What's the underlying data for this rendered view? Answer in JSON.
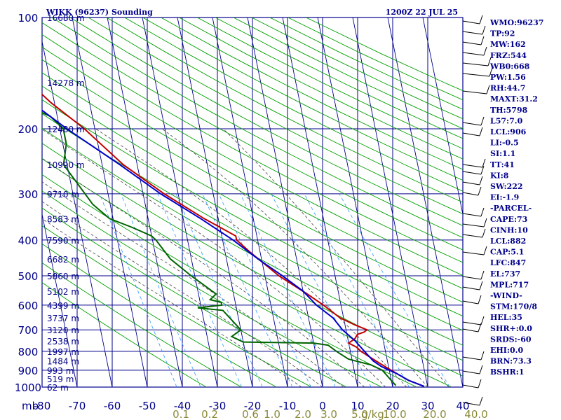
{
  "header": {
    "title": "WIKK (96237) Sounding",
    "time": "1200Z 22 JUL 25"
  },
  "colors": {
    "frame": "#00008b",
    "temperature": "#c00000",
    "dewpoint": "#006400",
    "parcel": "#0000cc",
    "dry_adiabat": "#00a000",
    "moist_adiabat": "#404040",
    "mixing_ratio": "#3399ff",
    "mixing_label": "#8a8a3a",
    "wind": "#000000"
  },
  "chart_data": {
    "type": "line",
    "title": "WIKK (96237) Sounding",
    "subtitle": "1200Z 22 JUL 25",
    "x_axis": {
      "unit_label": "mb",
      "ticks": [
        -80,
        -70,
        -60,
        -50,
        -40,
        -30,
        -20,
        -10,
        0,
        10,
        20,
        30,
        40
      ],
      "range": [
        -80,
        40
      ]
    },
    "y_axis": {
      "ticks": [
        100,
        200,
        300,
        400,
        500,
        600,
        700,
        800,
        900,
        1000
      ],
      "range": [
        100,
        1000
      ],
      "scale": "log"
    },
    "grid": true,
    "height_labels": [
      {
        "p": 100,
        "label": "16680 m"
      },
      {
        "p": 150,
        "label": "14278 m"
      },
      {
        "p": 200,
        "label": "12480 m"
      },
      {
        "p": 250,
        "label": "10990 m"
      },
      {
        "p": 300,
        "label": "9710 m"
      },
      {
        "p": 350,
        "label": "8583 m"
      },
      {
        "p": 400,
        "label": "7590 m"
      },
      {
        "p": 450,
        "label": "6682 m"
      },
      {
        "p": 500,
        "label": "5860 m"
      },
      {
        "p": 550,
        "label": "5102 m"
      },
      {
        "p": 600,
        "label": "4399 m"
      },
      {
        "p": 650,
        "label": "3737 m"
      },
      {
        "p": 700,
        "label": "3120 m"
      },
      {
        "p": 750,
        "label": "2538 m"
      },
      {
        "p": 800,
        "label": "1997 m"
      },
      {
        "p": 850,
        "label": "1484 m"
      },
      {
        "p": 900,
        "label": "993 m"
      },
      {
        "p": 950,
        "label": "519 m"
      },
      {
        "p": 1000,
        "label": "62 m"
      }
    ],
    "mixing_ratio_labels": [
      "0.1",
      "0.2",
      "0.6",
      "1.0",
      "2.0",
      "3.0",
      "5.0",
      "10.0",
      "20.0",
      "40.0",
      "g/kg"
    ],
    "series": [
      {
        "key": "temperature",
        "points": [
          [
            100,
            -80
          ],
          [
            110,
            -76
          ],
          [
            120,
            -73
          ],
          [
            130,
            -71
          ],
          [
            140,
            -68
          ],
          [
            150,
            -66
          ],
          [
            170,
            -61
          ],
          [
            200,
            -53
          ],
          [
            250,
            -44
          ],
          [
            300,
            -34
          ],
          [
            350,
            -24
          ],
          [
            390,
            -16
          ],
          [
            400,
            -16
          ],
          [
            430,
            -13
          ],
          [
            500,
            -6
          ],
          [
            560,
            1
          ],
          [
            600,
            5
          ],
          [
            650,
            9
          ],
          [
            680,
            13
          ],
          [
            700,
            16
          ],
          [
            710,
            15
          ],
          [
            720,
            13
          ],
          [
            740,
            12
          ],
          [
            760,
            10
          ],
          [
            780,
            12
          ],
          [
            800,
            13
          ],
          [
            840,
            16
          ],
          [
            880,
            19
          ],
          [
            920,
            22
          ],
          [
            960,
            25
          ],
          [
            995,
            29
          ]
        ]
      },
      {
        "key": "dewpoint",
        "points": [
          [
            150,
            -80
          ],
          [
            170,
            -70
          ],
          [
            185,
            -62
          ],
          [
            200,
            -59
          ],
          [
            220,
            -59
          ],
          [
            250,
            -61
          ],
          [
            320,
            -55
          ],
          [
            350,
            -51
          ],
          [
            370,
            -45
          ],
          [
            390,
            -40
          ],
          [
            400,
            -39
          ],
          [
            450,
            -36
          ],
          [
            500,
            -31
          ],
          [
            560,
            -25
          ],
          [
            580,
            -27
          ],
          [
            590,
            -24
          ],
          [
            600,
            -24
          ],
          [
            610,
            -31
          ],
          [
            620,
            -24
          ],
          [
            700,
            -20
          ],
          [
            730,
            -23
          ],
          [
            755,
            -20
          ],
          [
            760,
            0
          ],
          [
            770,
            4
          ],
          [
            800,
            6
          ],
          [
            840,
            9
          ],
          [
            870,
            15
          ],
          [
            900,
            18
          ],
          [
            960,
            20
          ],
          [
            990,
            21
          ]
        ]
      },
      {
        "key": "parcel",
        "points": [
          [
            128,
            -80
          ],
          [
            150,
            -73
          ],
          [
            200,
            -58
          ],
          [
            250,
            -45
          ],
          [
            300,
            -35
          ],
          [
            350,
            -25
          ],
          [
            400,
            -17
          ],
          [
            450,
            -11
          ],
          [
            500,
            -5
          ],
          [
            550,
            0
          ],
          [
            600,
            3
          ],
          [
            650,
            7
          ],
          [
            700,
            9
          ],
          [
            750,
            12
          ],
          [
            800,
            14
          ],
          [
            850,
            16
          ],
          [
            880,
            18
          ],
          [
            920,
            22
          ],
          [
            960,
            25
          ],
          [
            995,
            29
          ]
        ]
      }
    ]
  },
  "indices": [
    "WMO:96237",
    "TP:92",
    "MW:162",
    "FRZ:544",
    "WB0:668",
    "PW:1.56",
    "RH:44.7",
    "MAXT:31.2",
    "TH:5798",
    "L57:7.0",
    "LCL:906",
    "LI:-0.5",
    "SI:1.1",
    "TT:41",
    "KI:8",
    "SW:222",
    "EI:-1.9",
    "-PARCEL-",
    "CAPE:73",
    "CINH:10",
    "LCL:882",
    "CAP:5.1",
    "LFC:847",
    "EL:737",
    "MPL:717",
    "-WIND-",
    "STM:170/8",
    "HEL:35",
    "SHR+:0.0",
    "SRDS:-60",
    "EHI:0.0",
    "BRN:73.3",
    "BSHR:1"
  ]
}
